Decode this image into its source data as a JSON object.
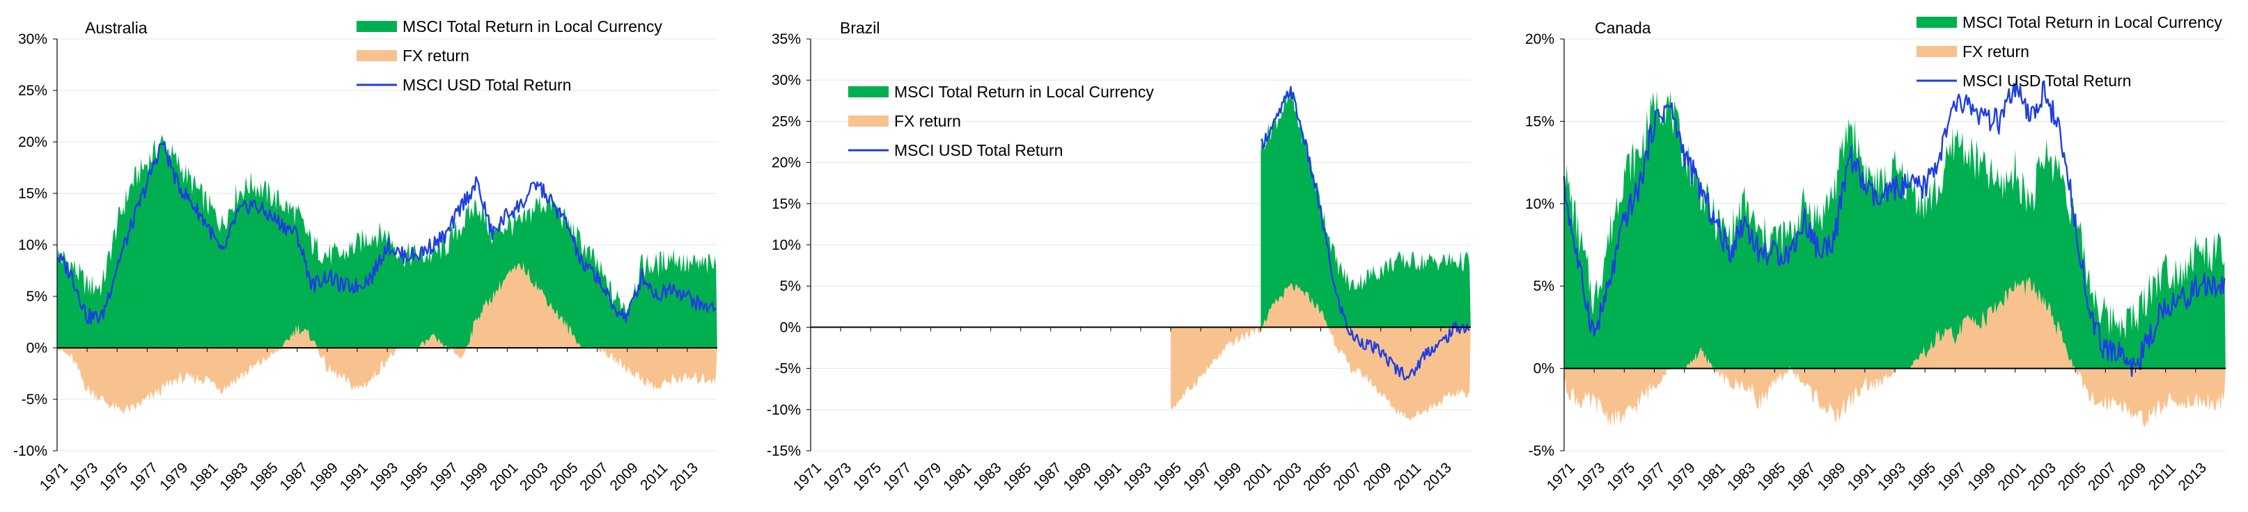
{
  "chart_data": [
    {
      "type": "area",
      "title": "Australia",
      "ylim": [
        -10,
        30
      ],
      "yticks": [
        -10,
        -5,
        0,
        5,
        10,
        15,
        20,
        25,
        30
      ],
      "ytick_labels": [
        "-10%",
        "-5%",
        "0%",
        "5%",
        "10%",
        "15%",
        "20%",
        "25%",
        "30%"
      ],
      "xlim": [
        1971,
        2015
      ],
      "xtick_labels": [
        "1971",
        "1973",
        "1975",
        "1977",
        "1979",
        "1981",
        "1983",
        "1985",
        "1987",
        "1989",
        "1991",
        "1993",
        "1995",
        "1997",
        "1999",
        "2001",
        "2003",
        "2005",
        "2007",
        "2009",
        "2011",
        "2013"
      ],
      "legend": [
        "MSCI Total Return in Local Currency",
        "FX return",
        "MSCI USD Total Return"
      ],
      "x": [
        1971,
        1972,
        1973,
        1974,
        1975,
        1976,
        1977,
        1978,
        1979,
        1980,
        1981,
        1982,
        1983,
        1984,
        1985,
        1986,
        1987,
        1988,
        1989,
        1990,
        1991,
        1992,
        1993,
        1994,
        1995,
        1996,
        1997,
        1998,
        1999,
        2000,
        2001,
        2002,
        2003,
        2004,
        2005,
        2006,
        2007,
        2008,
        2009,
        2010,
        2011,
        2012,
        2013,
        2014
      ],
      "series": [
        {
          "name": "MSCI Total Return in Local Currency",
          "values": [
            9,
            8,
            6,
            6,
            12,
            16,
            18,
            20,
            18,
            16,
            14,
            12,
            15,
            16,
            15,
            14,
            13,
            10,
            9,
            9,
            10,
            11,
            11,
            9,
            9,
            9,
            10,
            12,
            14,
            11,
            12,
            12,
            14,
            14,
            12,
            10,
            8,
            5,
            4,
            8,
            8,
            9,
            8,
            8
          ]
        },
        {
          "name": "FX return",
          "values": [
            0,
            -1,
            -4,
            -5,
            -6,
            -6,
            -5,
            -4,
            -3,
            -3,
            -3,
            -4,
            -3,
            -2,
            -1,
            0,
            2,
            1,
            -2,
            -3,
            -4,
            -3,
            -1,
            0,
            0,
            1,
            0,
            -1,
            3,
            5,
            7,
            8,
            6,
            4,
            2,
            0,
            0,
            -1,
            -2,
            -3,
            -4,
            -3,
            -3,
            -3
          ]
        },
        {
          "name": "MSCI USD Total Return",
          "values": [
            9,
            7,
            3,
            3,
            8,
            12,
            16,
            20,
            16,
            14,
            12,
            9,
            13,
            14,
            13,
            12,
            11,
            6,
            7,
            6,
            6,
            7,
            10,
            9,
            9,
            10,
            11,
            14,
            16,
            11,
            13,
            14,
            16,
            14,
            12,
            8,
            7,
            4,
            3,
            7,
            5,
            6,
            5,
            4
          ]
        }
      ]
    },
    {
      "type": "area",
      "title": "Brazil",
      "ylim": [
        -15,
        35
      ],
      "yticks": [
        -15,
        -10,
        -5,
        0,
        5,
        10,
        15,
        20,
        25,
        30,
        35
      ],
      "ytick_labels": [
        "-15%",
        "-10%",
        "-5%",
        "0%",
        "5%",
        "10%",
        "15%",
        "20%",
        "25%",
        "30%",
        "35%"
      ],
      "xlim": [
        1971,
        2015
      ],
      "xtick_labels": [
        "1971",
        "1973",
        "1975",
        "1977",
        "1979",
        "1981",
        "1983",
        "1985",
        "1987",
        "1989",
        "1991",
        "1993",
        "1995",
        "1997",
        "1999",
        "2001",
        "2003",
        "2005",
        "2007",
        "2009",
        "2011",
        "2013"
      ],
      "legend": [
        "MSCI Total Return in Local Currency",
        "FX return",
        "MSCI USD Total Return"
      ],
      "x": [
        2001,
        2002,
        2003,
        2004,
        2005,
        2006,
        2007,
        2008,
        2009,
        2010,
        2011,
        2012,
        2013,
        2014
      ],
      "series": [
        {
          "name": "MSCI Total Return in Local Currency",
          "values": [
            22,
            25,
            28,
            22,
            15,
            8,
            5,
            6,
            7,
            8,
            8,
            8,
            8,
            8
          ]
        },
        {
          "name": "FX return",
          "values": [
            0,
            3,
            5,
            4,
            2,
            -2,
            -5,
            -6,
            -8,
            -10,
            -11,
            -10,
            -9,
            -8
          ]
        },
        {
          "name": "MSCI USD Total Return",
          "values": [
            22,
            25,
            29,
            22,
            14,
            4,
            -1,
            -2,
            -3,
            -5,
            -6,
            -3,
            -2,
            0
          ]
        }
      ],
      "fx_only": {
        "x": [
          1995,
          1996,
          1997,
          1998,
          1999,
          2000,
          2001
        ],
        "values": [
          -10,
          -8,
          -6,
          -4,
          -2,
          -1,
          0
        ]
      }
    },
    {
      "type": "area",
      "title": "Canada",
      "ylim": [
        -5,
        20
      ],
      "yticks": [
        -5,
        0,
        5,
        10,
        15,
        20
      ],
      "ytick_labels": [
        "-5%",
        "0%",
        "5%",
        "10%",
        "15%",
        "20%"
      ],
      "xlim": [
        1971,
        2015
      ],
      "xtick_labels": [
        "1971",
        "1973",
        "1975",
        "1977",
        "1979",
        "1981",
        "1983",
        "1985",
        "1987",
        "1989",
        "1991",
        "1993",
        "1995",
        "1997",
        "1999",
        "2001",
        "2003",
        "2005",
        "2007",
        "2009",
        "2011",
        "2013"
      ],
      "legend": [
        "MSCI Total Return in Local Currency",
        "FX return",
        "MSCI USD Total Return"
      ],
      "x": [
        1971,
        1972,
        1973,
        1974,
        1975,
        1976,
        1977,
        1978,
        1979,
        1980,
        1981,
        1982,
        1983,
        1984,
        1985,
        1986,
        1987,
        1988,
        1989,
        1990,
        1991,
        1992,
        1993,
        1994,
        1995,
        1996,
        1997,
        1998,
        1999,
        2000,
        2001,
        2002,
        2003,
        2004,
        2005,
        2006,
        2007,
        2008,
        2009,
        2010,
        2011,
        2012,
        2013,
        2014
      ],
      "series": [
        {
          "name": "MSCI Total Return in Local Currency",
          "values": [
            12,
            8,
            4,
            8,
            12,
            13,
            16,
            16,
            13,
            11,
            9,
            8,
            10,
            8,
            8,
            8,
            10,
            9,
            11,
            15,
            12,
            11,
            12,
            11,
            10,
            11,
            14,
            13,
            12,
            11,
            12,
            10,
            13,
            12,
            9,
            5,
            3,
            3,
            3,
            5,
            6,
            6,
            7,
            7
          ]
        },
        {
          "name": "FX return",
          "values": [
            -1,
            -2,
            -2,
            -3,
            -3,
            -2,
            -1,
            0,
            0,
            1,
            0,
            -1,
            -1,
            -2,
            -1,
            0,
            -1,
            -2,
            -3,
            -2,
            -1,
            -1,
            0,
            0,
            1,
            2,
            2,
            3,
            3,
            4,
            5,
            5,
            4,
            2,
            0,
            -2,
            -2,
            -2,
            -3,
            -3,
            -2,
            -2,
            -2,
            -2
          ]
        },
        {
          "name": "MSCI USD Total Return",
          "values": [
            11,
            6,
            2,
            5,
            9,
            11,
            15,
            16,
            13,
            11,
            9,
            7,
            9,
            7,
            7,
            7,
            9,
            7,
            8,
            13,
            11,
            10,
            11,
            11,
            11,
            13,
            16,
            16,
            15,
            15,
            17,
            15,
            17,
            14,
            9,
            3,
            1,
            1,
            0,
            2,
            4,
            4,
            5,
            5
          ]
        }
      ]
    }
  ]
}
